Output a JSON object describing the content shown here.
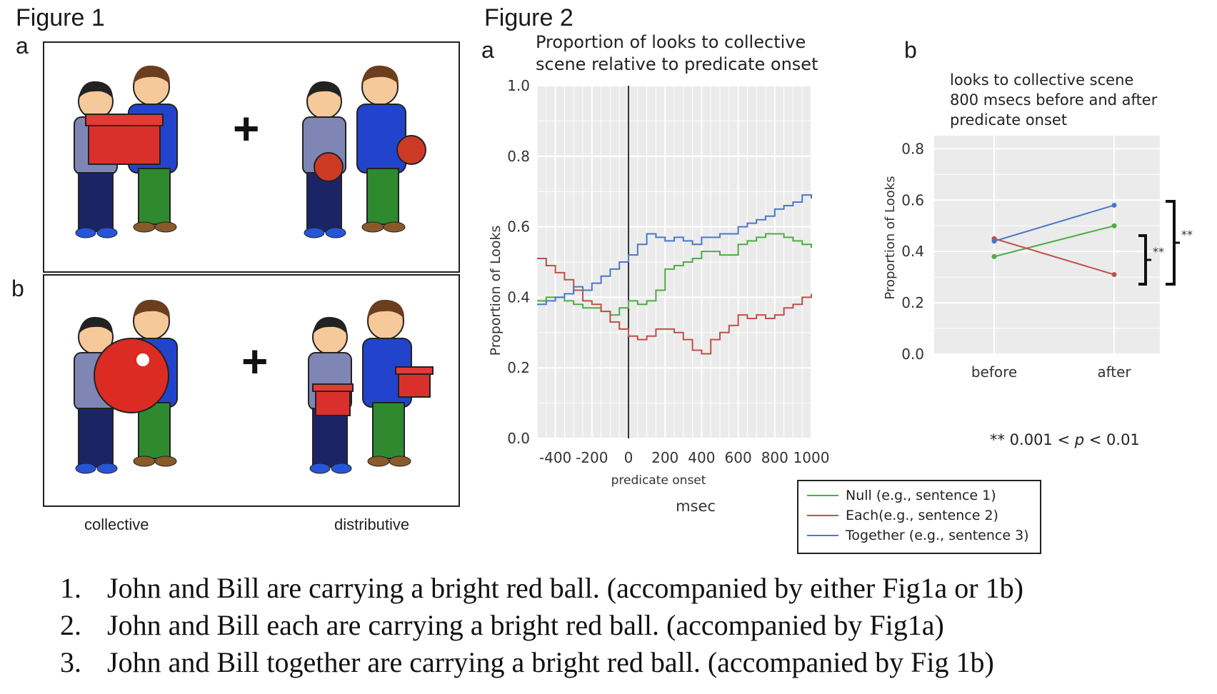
{
  "figure1": {
    "title": "Figure 1",
    "panel_a": "a",
    "panel_b": "b",
    "plus": "+",
    "caption_left": "collective",
    "caption_right": "distributive"
  },
  "figure2": {
    "title": "Figure 2",
    "panel_a": "a",
    "panel_b": "b",
    "note_prefix": "** 0.001 < ",
    "note_p": "p",
    "note_suffix": " < 0.01",
    "legend": [
      {
        "label": "Null (e.g., sentence 1)",
        "color": "#4cae44"
      },
      {
        "label": "Each(e.g., sentence 2)",
        "color": "#c0504d"
      },
      {
        "label": "Together (e.g., sentence 3)",
        "color": "#4a78c8"
      }
    ]
  },
  "chart_data": [
    {
      "type": "line",
      "title_line1": "Proportion of looks to collective",
      "title_line2": "scene relative to predicate onset",
      "xlabel": "predicate onset",
      "xlabel2": "msec",
      "ylabel": "Proportion of Looks",
      "xlim": [
        -500,
        1000
      ],
      "ylim": [
        0,
        1.0
      ],
      "x_ticks": [
        "-400",
        "-200",
        "0",
        "200",
        "400",
        "600",
        "800",
        "1000"
      ],
      "y_ticks": [
        "0.0",
        "0.2",
        "0.4",
        "0.6",
        "0.8",
        "1.0"
      ],
      "x": [
        -500,
        -450,
        -400,
        -350,
        -300,
        -250,
        -200,
        -150,
        -100,
        -50,
        0,
        50,
        100,
        150,
        200,
        250,
        300,
        350,
        400,
        450,
        500,
        550,
        600,
        650,
        700,
        750,
        800,
        850,
        900,
        950,
        1000
      ],
      "series": [
        {
          "name": "Null",
          "color": "#4cae44",
          "values": [
            0.39,
            0.4,
            0.4,
            0.39,
            0.38,
            0.37,
            0.37,
            0.36,
            0.35,
            0.37,
            0.39,
            0.38,
            0.39,
            0.42,
            0.48,
            0.49,
            0.5,
            0.51,
            0.53,
            0.53,
            0.52,
            0.52,
            0.55,
            0.56,
            0.57,
            0.58,
            0.58,
            0.57,
            0.56,
            0.55,
            0.54
          ]
        },
        {
          "name": "Each",
          "color": "#c0504d",
          "values": [
            0.51,
            0.49,
            0.47,
            0.45,
            0.42,
            0.39,
            0.38,
            0.36,
            0.33,
            0.31,
            0.29,
            0.28,
            0.29,
            0.31,
            0.31,
            0.3,
            0.28,
            0.25,
            0.24,
            0.28,
            0.3,
            0.32,
            0.35,
            0.34,
            0.35,
            0.34,
            0.35,
            0.37,
            0.38,
            0.4,
            0.41
          ]
        },
        {
          "name": "Together",
          "color": "#4a78c8",
          "values": [
            0.38,
            0.39,
            0.4,
            0.41,
            0.43,
            0.42,
            0.44,
            0.46,
            0.48,
            0.5,
            0.52,
            0.55,
            0.58,
            0.57,
            0.56,
            0.57,
            0.56,
            0.55,
            0.57,
            0.57,
            0.58,
            0.58,
            0.6,
            0.61,
            0.62,
            0.63,
            0.65,
            0.66,
            0.67,
            0.69,
            0.68
          ]
        }
      ]
    },
    {
      "type": "line",
      "title_line1": "looks to collective scene",
      "title_line2": "800 msecs before and after",
      "title_line3": "predicate onset",
      "xlabel": "",
      "ylabel": "Proportion of Looks",
      "categories": [
        "before",
        "after"
      ],
      "ylim": [
        0,
        0.8
      ],
      "y_ticks": [
        "0.0",
        "0.2",
        "0.4",
        "0.6",
        "0.8"
      ],
      "series": [
        {
          "name": "Null",
          "color": "#4cae44",
          "values": [
            0.38,
            0.5
          ]
        },
        {
          "name": "Each",
          "color": "#c0504d",
          "values": [
            0.45,
            0.31
          ]
        },
        {
          "name": "Together",
          "color": "#4a78c8",
          "values": [
            0.44,
            0.58
          ]
        }
      ],
      "annotations": [
        "**",
        "**"
      ]
    }
  ],
  "sentences": [
    {
      "num": "1.",
      "text": "John and Bill are carrying a bright red ball.   (accompanied by either Fig1a or 1b)"
    },
    {
      "num": "2.",
      "text": "John and Bill each are carrying a bright red ball.  (accompanied by Fig1a)"
    },
    {
      "num": "3.",
      "text": "John and Bill together are carrying a bright red ball. (accompanied by Fig 1b)"
    }
  ]
}
